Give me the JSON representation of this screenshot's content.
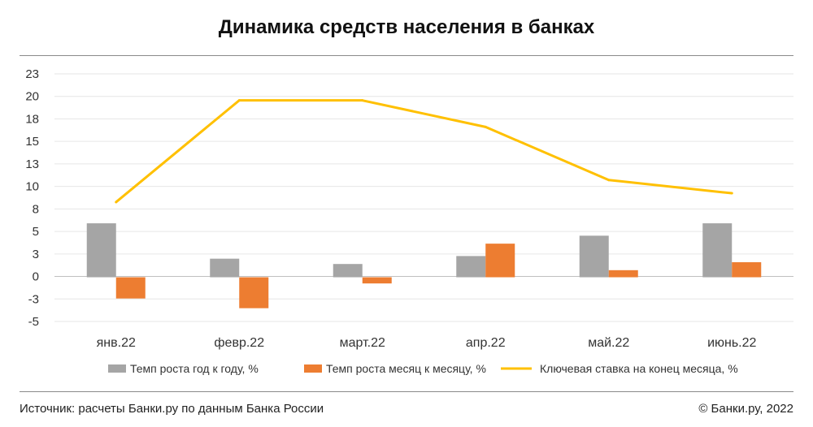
{
  "title": "Динамика средств населения в банках",
  "footer": {
    "source": "Источник: расчеты Банки.ру по данным Банка России",
    "copyright": "© Банки.ру, 2022"
  },
  "chart_data": {
    "type": "bar",
    "title": "Динамика средств населения в банках",
    "categories": [
      "янв.22",
      "февр.22",
      "март.22",
      "апр.22",
      "май.22",
      "июнь.22"
    ],
    "y_tick_labels": [
      "23",
      "20",
      "18",
      "15",
      "13",
      "10",
      "8",
      "5",
      "3",
      "0",
      "-3",
      "-5"
    ],
    "ylim": [
      -5,
      23
    ],
    "grid": true,
    "legend_position": "bottom",
    "series": [
      {
        "name": "Темп роста год к году, %",
        "type": "bar",
        "color": "#A5A5A5",
        "values": [
          6.1,
          2.1,
          1.5,
          2.4,
          4.7,
          6.1
        ]
      },
      {
        "name": "Темп роста месяц к месяцу, %",
        "type": "bar",
        "color": "#ED7D31",
        "values": [
          -2.4,
          -3.5,
          -0.7,
          3.8,
          0.8,
          1.7
        ]
      },
      {
        "name": "Ключевая ставка на конец месяца, %",
        "type": "line",
        "color": "#FFC000",
        "values": [
          8.5,
          20,
          20,
          17,
          11,
          9.5
        ]
      }
    ]
  }
}
